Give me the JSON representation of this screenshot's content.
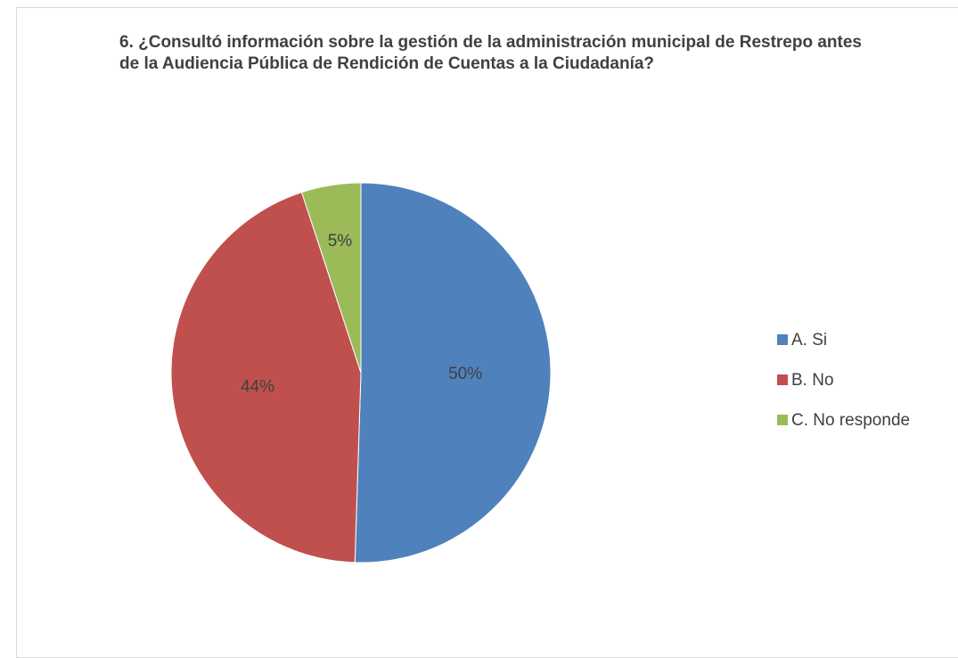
{
  "chart_data": {
    "type": "pie",
    "title": "6. ¿Consultó información sobre la gestión de la administración municipal de Restrepo antes de la Audiencia Pública de Rendición de Cuentas a la Ciudadanía?",
    "categories": [
      "A. Si",
      "B. No",
      "C. No responde"
    ],
    "values": [
      50,
      44,
      5
    ],
    "value_labels": [
      "50%",
      "44%",
      "5%"
    ],
    "colors": [
      "#4f81bd",
      "#c0504d",
      "#9bbb59"
    ],
    "legend": "right"
  }
}
